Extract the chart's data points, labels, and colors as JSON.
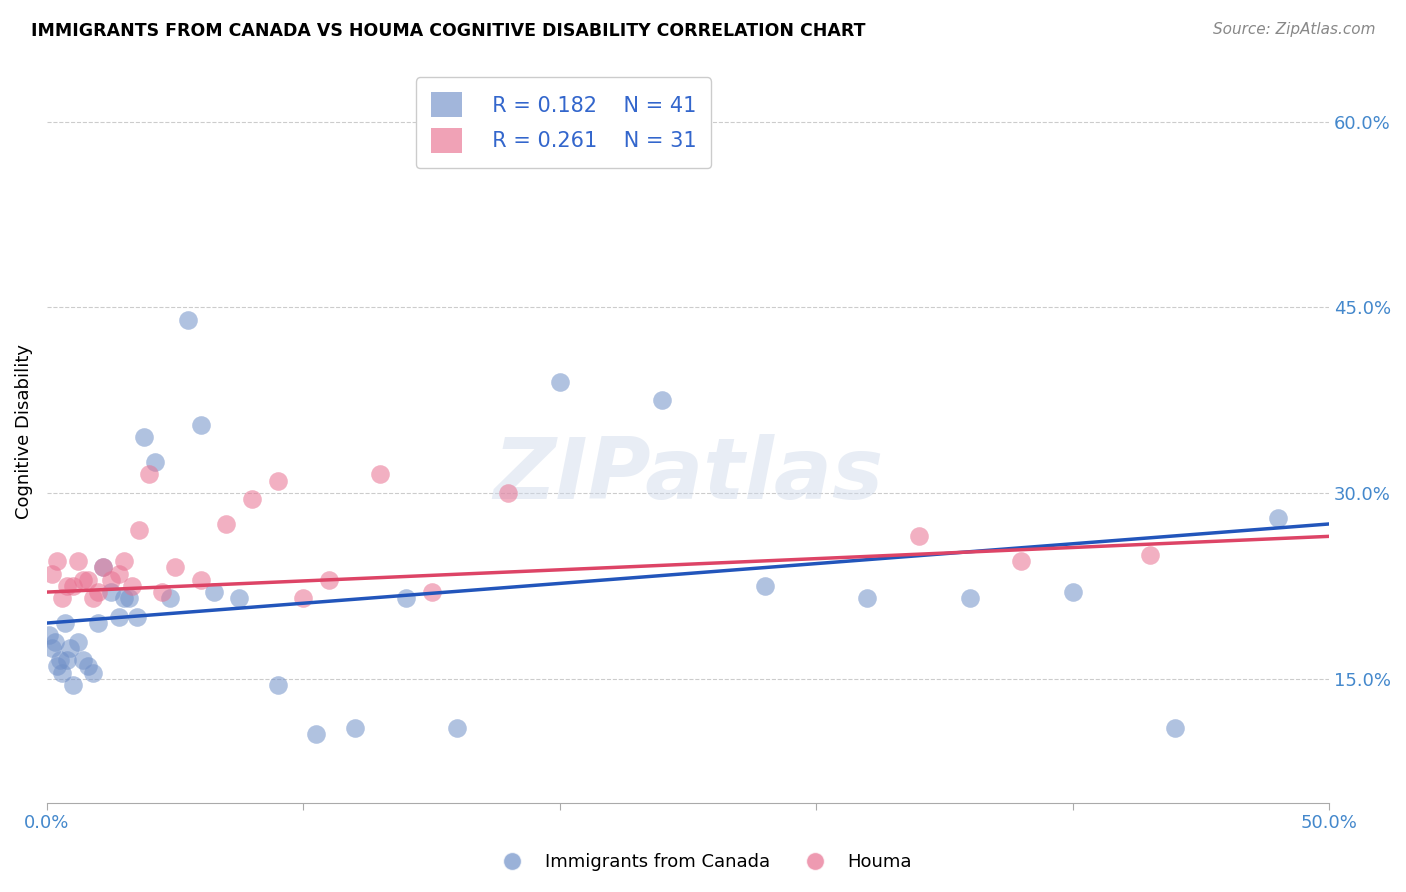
{
  "title": "IMMIGRANTS FROM CANADA VS HOUMA COGNITIVE DISABILITY CORRELATION CHART",
  "source": "Source: ZipAtlas.com",
  "xlabel": "",
  "ylabel": "Cognitive Disability",
  "xlim": [
    0.0,
    0.5
  ],
  "ylim": [
    0.05,
    0.65
  ],
  "yticks": [
    0.15,
    0.3,
    0.45,
    0.6
  ],
  "ytick_labels": [
    "15.0%",
    "30.0%",
    "45.0%",
    "60.0%"
  ],
  "xticks": [
    0.0,
    0.1,
    0.2,
    0.3,
    0.4,
    0.5
  ],
  "xtick_labels": [
    "0.0%",
    "",
    "",
    "",
    "",
    "50.0%"
  ],
  "blue_color": "#7090c8",
  "pink_color": "#e87090",
  "blue_line_color": "#2255bb",
  "pink_line_color": "#dd4466",
  "watermark": "ZIPatlas",
  "legend_R_blue": "0.182",
  "legend_N_blue": "41",
  "legend_R_pink": "0.261",
  "legend_N_pink": "31",
  "blue_x": [
    0.001,
    0.002,
    0.003,
    0.004,
    0.005,
    0.006,
    0.007,
    0.008,
    0.009,
    0.01,
    0.012,
    0.014,
    0.016,
    0.018,
    0.02,
    0.022,
    0.025,
    0.028,
    0.03,
    0.032,
    0.035,
    0.038,
    0.042,
    0.048,
    0.055,
    0.06,
    0.065,
    0.075,
    0.09,
    0.105,
    0.12,
    0.14,
    0.16,
    0.2,
    0.24,
    0.28,
    0.32,
    0.36,
    0.4,
    0.44,
    0.48
  ],
  "blue_y": [
    0.185,
    0.175,
    0.18,
    0.16,
    0.165,
    0.155,
    0.195,
    0.165,
    0.175,
    0.145,
    0.18,
    0.165,
    0.16,
    0.155,
    0.195,
    0.24,
    0.22,
    0.2,
    0.215,
    0.215,
    0.2,
    0.345,
    0.325,
    0.215,
    0.44,
    0.355,
    0.22,
    0.215,
    0.145,
    0.105,
    0.11,
    0.215,
    0.11,
    0.39,
    0.375,
    0.225,
    0.215,
    0.215,
    0.22,
    0.11,
    0.28
  ],
  "pink_x": [
    0.002,
    0.004,
    0.006,
    0.008,
    0.01,
    0.012,
    0.014,
    0.016,
    0.018,
    0.02,
    0.022,
    0.025,
    0.028,
    0.03,
    0.033,
    0.036,
    0.04,
    0.045,
    0.05,
    0.06,
    0.07,
    0.08,
    0.09,
    0.1,
    0.11,
    0.13,
    0.15,
    0.18,
    0.34,
    0.38,
    0.43
  ],
  "pink_y": [
    0.235,
    0.245,
    0.215,
    0.225,
    0.225,
    0.245,
    0.23,
    0.23,
    0.215,
    0.22,
    0.24,
    0.23,
    0.235,
    0.245,
    0.225,
    0.27,
    0.315,
    0.22,
    0.24,
    0.23,
    0.275,
    0.295,
    0.31,
    0.215,
    0.23,
    0.315,
    0.22,
    0.3,
    0.265,
    0.245,
    0.25
  ],
  "blue_line_start_y": 0.195,
  "blue_line_end_y": 0.275,
  "pink_line_start_y": 0.22,
  "pink_line_end_y": 0.265
}
